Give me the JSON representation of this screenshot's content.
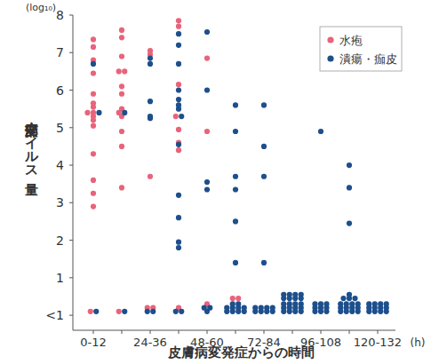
{
  "chart_data": {
    "type": "scatter",
    "x_label": "皮膚病変発症からの時間",
    "x_unit": "(h)",
    "y_label": "病変部ウイルス量",
    "y_unit": "(log₁₀)",
    "categories": [
      "0-12",
      null,
      "24-36",
      null,
      "48-60",
      null,
      "72-84",
      null,
      "96-108",
      null,
      "120-132"
    ],
    "series": [
      {
        "name": "水疱",
        "color": "#e8637b",
        "marker": "circle",
        "values": [
          [
            7.35,
            7.15,
            6.8,
            6.45,
            5.9,
            5.65,
            5.55,
            5.4,
            5.4,
            5.3,
            5.2,
            5.05,
            4.3,
            3.6,
            3.25,
            2.9,
            0.1
          ],
          [
            7.6,
            7.4,
            6.9,
            6.5,
            6.5,
            6.1,
            5.9,
            5.5,
            5.4,
            5.3,
            4.9,
            4.5,
            3.4,
            0.1
          ],
          [
            7.05,
            6.95,
            3.7,
            0.2,
            0.2
          ],
          [
            7.85,
            7.7,
            6.15,
            5.3,
            4.95,
            4.6,
            4.4,
            0.2
          ],
          [
            6.85,
            4.9,
            0.3
          ],
          [
            0.45,
            0.45
          ],
          [],
          [],
          [],
          [],
          []
        ]
      },
      {
        "name": "潰瘍・痂皮",
        "color": "#1d4f8c",
        "marker": "circle",
        "values": [
          [
            6.7,
            5.4,
            0.1
          ],
          [
            5.4,
            0.1
          ],
          [
            6.85,
            6.7,
            5.7,
            5.3,
            5.25,
            0.1,
            0.1
          ],
          [
            7.5,
            7.2,
            6.7,
            6.0,
            5.75,
            5.6,
            5.5,
            5.3,
            4.55,
            3.2,
            2.6,
            1.95,
            1.8,
            0.1,
            0.1
          ],
          [
            7.55,
            6.0,
            3.55,
            3.35,
            0.1,
            0.2,
            0.2
          ],
          [
            5.6,
            4.9,
            3.7,
            3.35,
            2.5,
            1.4,
            0.1,
            0.1,
            0.1,
            0.1,
            0.2,
            0.2,
            0.2,
            0.2,
            0.3,
            0.3
          ],
          [
            5.6,
            4.5,
            3.7,
            1.4,
            0.1,
            0.1,
            0.1,
            0.1,
            0.2,
            0.2,
            0.2,
            0.2
          ],
          [
            0.1,
            0.1,
            0.1,
            0.1,
            0.2,
            0.2,
            0.2,
            0.2,
            0.3,
            0.3,
            0.3,
            0.3,
            0.45,
            0.45,
            0.45,
            0.45,
            0.55,
            0.55,
            0.55,
            0.55
          ],
          [
            4.9,
            0.1,
            0.1,
            0.1,
            0.2,
            0.2,
            0.2,
            0.3,
            0.3,
            0.3
          ],
          [
            4.0,
            3.4,
            2.45,
            0.1,
            0.1,
            0.1,
            0.1,
            0.2,
            0.2,
            0.2,
            0.2,
            0.3,
            0.3,
            0.3,
            0.3,
            0.45,
            0.45,
            0.45,
            0.55
          ],
          [
            0.1,
            0.1,
            0.1,
            0.1,
            0.2,
            0.2,
            0.2,
            0.2,
            0.3,
            0.3,
            0.3,
            0.3
          ]
        ]
      }
    ],
    "ylim": [
      -0.4,
      8
    ],
    "yticks": [
      {
        "value": 0,
        "label": "<1"
      },
      1,
      2,
      3,
      4,
      5,
      6,
      7,
      8
    ],
    "legend": "top-right",
    "grid": false
  }
}
